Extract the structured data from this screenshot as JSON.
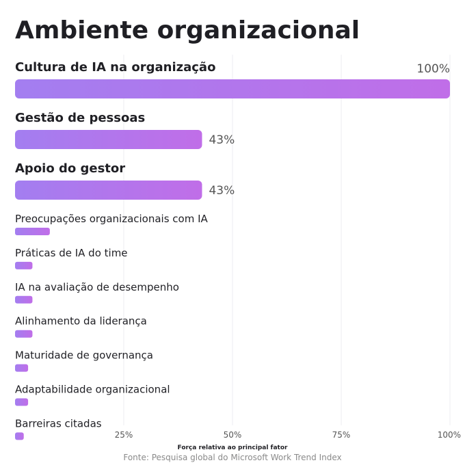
{
  "chart_data": {
    "type": "bar",
    "orientation": "horizontal",
    "title": "Ambiente organizacional",
    "xlabel": "Força relativa ao principal fator",
    "source": "Fonte: Pesquisa global do Microsoft Work Trend Index",
    "xlim": [
      0,
      100
    ],
    "x_ticks": [
      "25%",
      "50%",
      "75%",
      "100%"
    ],
    "x_tick_values": [
      25,
      50,
      75,
      100
    ],
    "grid": true,
    "bar_color_start": "#a37ef0",
    "bar_color_end": "#c06ee8",
    "categories": [
      "Cultura de IA na organização",
      "Gestão de pessoas",
      "Apoio do gestor",
      "Preocupações organizacionais com IA",
      "Práticas de IA do time",
      "IA na avaliação de desempenho",
      "Alinhamento da liderança",
      "Maturidade de governança",
      "Adaptabilidade organizacional",
      "Barreiras citadas"
    ],
    "values": [
      100,
      43,
      43,
      8,
      4,
      4,
      4,
      3,
      3,
      2
    ],
    "value_labels": [
      "100%",
      "43%",
      "43%",
      "",
      "",
      "",
      "",
      "",
      "",
      ""
    ],
    "highlighted": [
      true,
      true,
      true,
      false,
      false,
      false,
      false,
      false,
      false,
      false
    ]
  }
}
